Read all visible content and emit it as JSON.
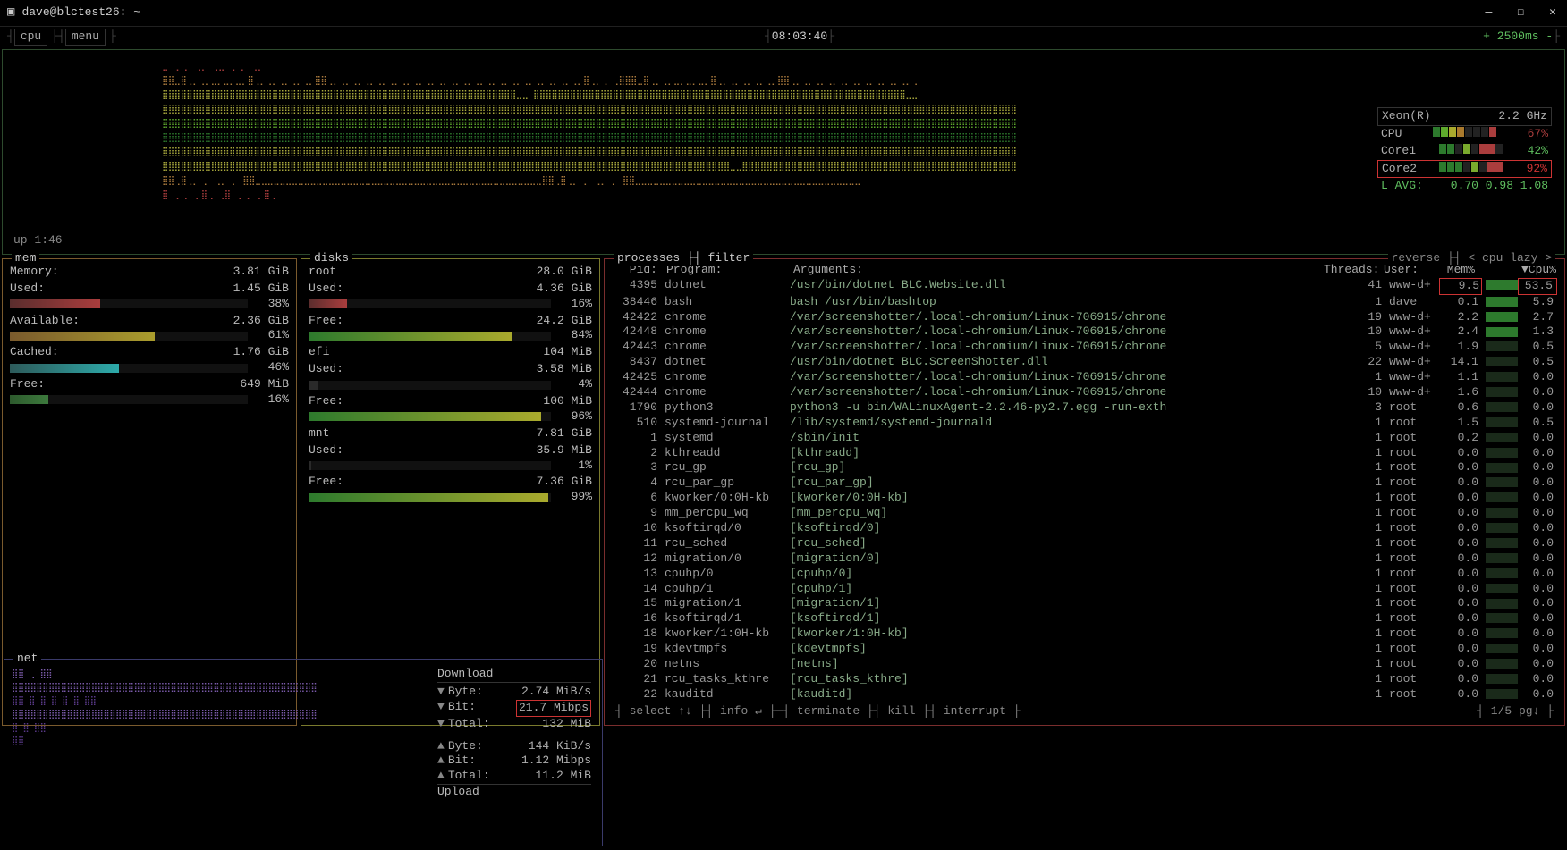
{
  "window": {
    "title": "dave@blctest26: ~"
  },
  "topbar": {
    "cpu_label": "cpu",
    "menu_label": "menu",
    "clock": "08:03:40",
    "interval": "+ 2500ms -"
  },
  "uptime": "up  1:46",
  "cpu_info": {
    "model": "Xeon(R)",
    "freq": "2.2 GHz",
    "cpu_label": "CPU",
    "cpu_pct": "67%",
    "cpu_pct_color": "#aa3d3d",
    "core1_label": "Core1",
    "core1_pct": "42%",
    "core1_pct_color": "#5fbf5f",
    "core2_label": "Core2",
    "core2_pct": "92%",
    "core2_pct_color": "#cc3333",
    "lavg_label": "L AVG:",
    "lavg": "0.70 0.98 1.08",
    "bar_segments": {
      "cpu": [
        "#2d7a2d",
        "#5faa2d",
        "#aaaa2d",
        "#aa7a2d",
        "#222",
        "#222",
        "#222",
        "#aa3d3d"
      ],
      "core1": [
        "#2d7a2d",
        "#2d7a2d",
        "#222",
        "#7aaa2d",
        "#222",
        "#aa3d3d",
        "#aa3d3d",
        "#222"
      ],
      "core2": [
        "#2d7a2d",
        "#2d7a2d",
        "#2d7a2d",
        "#222",
        "#7aaa2d",
        "#222",
        "#aa3d3d",
        "#aa3d3d"
      ]
    }
  },
  "cpu_graph": {
    "rows": [
      {
        "color": "#aa3d3d",
        "chars": "⣀  ⢀          ⡀         ⢀⡀                                              ⢀"
      },
      {
        "color": "#aa7a3d",
        "chars": "⣿⣿⣀⣿⢀⡀⢀⡀⣀⡀⣀⡀⣀⡀⣿⢀⡀⢀⡀⢀⡀⢀⡀⢀⡀⣿⣿⢀⡀⢀⡀⢀⡀⢀⡀⢀⡀⢀⡀⢀⡀⢀⡀⢀⡀⢀⡀⢀⡀⢀⡀⢀⡀⢀⡀⢀⡀⢀⡀⢀⡀⢀⡀⢀⡀⢀⡀⢀⡀⣿⢀⡀⢀                 ⢀⣿"
      },
      {
        "color": "#aaaa3d",
        "chars": "⣿⣿⣿⣿⣿⣿⣿⣿⣿⣿⣿⣿⣿⣿⣿⣿⣿⣿⣿⣿⣿⣿⣿⣿⣿⣿⣿⣿⣿⣿⣿⣿⣿⣿⣿⣿⣿⣿⣿⣿⣿⣿⣿⣿⣿⣿⣿⣿⣿⣿⣿⣿⣿⣿⣿⣿⣿⣿⣀⣀                ⣿⣿⣿"
      },
      {
        "color": "#aaaa3d",
        "chars": "⣿⣿⣿⣿⣿⣿⣿⣿⣿⣿⣿⣿⣿⣿⣿⣿⣿⣿⣿⣿⣿⣿⣿⣿⣿⣿⣿⣿⣿⣿⣿⣿⣿⣿⣿⣿⣿⣿⣿⣿⣿⣿⣿⣿⣿⣿⣿⣿⣿⣿⣿⣿⣿⣿⣿⣿⣿⣿⣿⣿⣿⣿⣿⣿⣿⣿⣿⣿⣿⣿⣿⣿⣿⣿⣿⣿⣿⣿⣿⣿⣿⣿⣿⣿⣿⣿⣿⣿⣿⣿⣿⣿⣿⣿⣿"
      },
      {
        "color": "#5faa2d",
        "chars": "⣿⣿⣿⣿⣿⣿⣿⣿⣿⣿⣿⣿⣿⣿⣿⣿⣿⣿⣿⣿⣿⣿⣿⣿⣿⣿⣿⣿⣿⣿⣿⣿⣿⣿⣿⣿⣿⣿⣿⣿⣿⣿⣿⣿⣿⣿⣿⣿⣿⣿⣿⣿⣿⣿⣿⣿⣿⣿⣿⣿⣿⣿⣿⣿⣿⣿⣿⣿⣿⣿⣿⣿⣿⣿⣿⣿⣿⣿⣿⣿⣿⣿⣿⣿⣿⣿⣿⣿⣿⣿⣿⣿⣿⣿⣿"
      },
      {
        "color": "#2d7a2d",
        "chars": "⣿⣿⣿⣿⣿⣿⣿⣿⣿⣿⣿⣿⣿⣿⣿⣿⣿⣿⣿⣿⣿⣿⣿⣿⣿⣿⣿⣿⣿⣿⣿⣿⣿⣿⣿⣿⣿⣿⣿⣿⣿⣿⣿⣿⣿⣿⣿⣿⣿⣿⣿⣿⣿⣿⣿⣿⣿⣿⣿⣿⣿⣿⣿⣿⣿⣿⣿⣿⣿⣿⣿⣿⣿⣿⣿⣿⣿⣿⣿⣿⣿⣿⣿⣿⣿⣿⣿⣿⣿⣿⣿⣿⣿⣿⣿"
      },
      {
        "color": "#aaaa3d",
        "chars": "⣿⣿⣿⣿⣿⣿⣿⣿⣿⣿⣿⣿⣿⣿⣿⣿⣿⣿⣿⣿⣿⣿⣿⣿⣿⣿⣿⣿⣿⣿⣿⣿⣿⣿⣿⣿⣿⣿⣿⣿⣿⣿⣿⣿⣿⣿⣿⣿⣿⣿⣿⣿⣿⣿⣿⣿⣿⣿⣿⣿⣿⣿⣿⣿⣿⣿⣿⣿⣿⣿⣿⣿⣿⣿⣿⣿⣿⣿⣿⣿⣿⣿⣿⣿⣿⣿⣿⣿⣿⣿⣿⣿⣿⣿⣿"
      },
      {
        "color": "#aaaa3d",
        "chars": "⣿⣿⣿⣿⣿⣿⣿⣿⣿⣿⣿⣿⣿⣿⣿⣿⣿⣿⣿⣿⣿⣿⣿⣿⣿⣿⣿⣿⣿⣿⣿⣿⣿⣿⣿⣿⣿⣿⣿⣿⣿⣿⣿⣿⣿⣿⣿⣿⣿⣿⣿⣿⣿⣿⣿⣿⣿⣿⣿⣿⣿⣿⣿⣿⣿⣿⣿⣿⣿⣿⣿⣿⣿⣿⣿⣿⣿⣿⣿⣿⣿⣿⣿⣿⣿⣿⣿⣿⣿⣿⣿⣿⣿⣀⣀"
      },
      {
        "color": "#aa7a3d",
        "chars": "⣿⣿⢀⣿⢀⡀     ⡀     ⢀⡀     ⡀ ⣿⣿⣀⣀⣀⣀⣀⣀⣀⣀⣀⣀⣀⣀⣀⣀⣀⣀⣀⣀⣀⣀⣀⣀⣀⣀⣀⣀⣀⣀⣀⣀⣀⣀⣀⣀⣀⣀⣀⣀⣀⣀⣀⣀⣀⣀⣀⣀⣀"
      },
      {
        "color": "#aa3d3d",
        "chars": "⣿  ⢀          ⡀         ⡀⣿⢀                                             ⢀"
      }
    ]
  },
  "mem": {
    "title": "mem",
    "items": [
      {
        "label": "Memory:",
        "value": "3.81 GiB",
        "bar_color": "#aa3d3d",
        "pct": "",
        "fill": 0
      },
      {
        "label": "Used:",
        "value": "1.45 GiB",
        "bar_color": "linear-gradient(90deg,#5a2d2d,#aa3d3d)",
        "pct": "38%",
        "fill": 38
      },
      {
        "label": "Available:",
        "value": "2.36 GiB",
        "bar_color": "linear-gradient(90deg,#7a5a2d,#aa9d2d)",
        "pct": "61%",
        "fill": 61
      },
      {
        "label": "Cached:",
        "value": "1.76 GiB",
        "bar_color": "linear-gradient(90deg,#2d5a5a,#2daaaa)",
        "pct": "46%",
        "fill": 46
      },
      {
        "label": "Free:",
        "value": "649 MiB",
        "bar_color": "linear-gradient(90deg,#2d5a2d,#3d7a3d)",
        "pct": "16%",
        "fill": 16
      }
    ]
  },
  "disks": {
    "title": "disks",
    "items": [
      {
        "label": "root",
        "value": "28.0 GiB",
        "is_header": true
      },
      {
        "label": "Used:",
        "value": "4.36 GiB",
        "bar": "gradient-red",
        "pct": "16%",
        "fill": 16
      },
      {
        "label": "Free:",
        "value": "24.2 GiB",
        "bar": "gradient-green-yellow",
        "pct": "84%",
        "fill": 84
      },
      {
        "label": "efi",
        "value": "104 MiB",
        "is_header": true
      },
      {
        "label": "Used:",
        "value": "3.58 MiB",
        "bar": "gradient-dark",
        "pct": "4%",
        "fill": 4
      },
      {
        "label": "Free:",
        "value": "100 MiB",
        "bar": "gradient-green-yellow",
        "pct": "96%",
        "fill": 96
      },
      {
        "label": "mnt",
        "value": "7.81 GiB",
        "is_header": true
      },
      {
        "label": "Used:",
        "value": "35.9 MiB",
        "bar": "gradient-dark",
        "pct": "1%",
        "fill": 1
      },
      {
        "label": "Free:",
        "value": "7.36 GiB",
        "bar": "gradient-green-yellow",
        "pct": "99%",
        "fill": 99
      }
    ]
  },
  "processes": {
    "title": "processes",
    "filter_label": "filter",
    "reverse_label": "reverse",
    "sort_label": "< cpu lazy >",
    "headers": {
      "pid": "Pid:",
      "program": "Program:",
      "args": "Arguments:",
      "threads": "Threads:",
      "user": "User:",
      "mem": "Mem%",
      "cpu": "▼Cpu%"
    },
    "rows": [
      {
        "pid": "4395",
        "prog": "dotnet",
        "args": "/usr/bin/dotnet BLC.Website.dll",
        "thr": "41",
        "user": "www-d+",
        "mem": "9.5",
        "cpu": "53.5",
        "hl": true
      },
      {
        "pid": "38446",
        "prog": "bash",
        "args": "bash /usr/bin/bashtop",
        "thr": "1",
        "user": "dave",
        "mem": "0.1",
        "cpu": "5.9"
      },
      {
        "pid": "42422",
        "prog": "chrome",
        "args": "/var/screenshotter/.local-chromium/Linux-706915/chrome",
        "thr": "19",
        "user": "www-d+",
        "mem": "2.2",
        "cpu": "2.7"
      },
      {
        "pid": "42448",
        "prog": "chrome",
        "args": "/var/screenshotter/.local-chromium/Linux-706915/chrome",
        "thr": "10",
        "user": "www-d+",
        "mem": "2.4",
        "cpu": "1.3"
      },
      {
        "pid": "42443",
        "prog": "chrome",
        "args": "/var/screenshotter/.local-chromium/Linux-706915/chrome",
        "thr": "5",
        "user": "www-d+",
        "mem": "1.9",
        "cpu": "0.5"
      },
      {
        "pid": "8437",
        "prog": "dotnet",
        "args": "/usr/bin/dotnet BLC.ScreenShotter.dll",
        "thr": "22",
        "user": "www-d+",
        "mem": "14.1",
        "cpu": "0.5"
      },
      {
        "pid": "42425",
        "prog": "chrome",
        "args": "/var/screenshotter/.local-chromium/Linux-706915/chrome",
        "thr": "1",
        "user": "www-d+",
        "mem": "1.1",
        "cpu": "0.0"
      },
      {
        "pid": "42444",
        "prog": "chrome",
        "args": "/var/screenshotter/.local-chromium/Linux-706915/chrome",
        "thr": "10",
        "user": "www-d+",
        "mem": "1.6",
        "cpu": "0.0"
      },
      {
        "pid": "1790",
        "prog": "python3",
        "args": "python3 -u bin/WALinuxAgent-2.2.46-py2.7.egg -run-exth",
        "thr": "3",
        "user": "root",
        "mem": "0.6",
        "cpu": "0.0"
      },
      {
        "pid": "510",
        "prog": "systemd-journal",
        "args": "/lib/systemd/systemd-journald",
        "thr": "1",
        "user": "root",
        "mem": "1.5",
        "cpu": "0.5"
      },
      {
        "pid": "1",
        "prog": "systemd",
        "args": "/sbin/init",
        "thr": "1",
        "user": "root",
        "mem": "0.2",
        "cpu": "0.0"
      },
      {
        "pid": "2",
        "prog": "kthreadd",
        "args": "[kthreadd]",
        "thr": "1",
        "user": "root",
        "mem": "0.0",
        "cpu": "0.0"
      },
      {
        "pid": "3",
        "prog": "rcu_gp",
        "args": "[rcu_gp]",
        "thr": "1",
        "user": "root",
        "mem": "0.0",
        "cpu": "0.0"
      },
      {
        "pid": "4",
        "prog": "rcu_par_gp",
        "args": "[rcu_par_gp]",
        "thr": "1",
        "user": "root",
        "mem": "0.0",
        "cpu": "0.0"
      },
      {
        "pid": "6",
        "prog": "kworker/0:0H-kb",
        "args": "[kworker/0:0H-kb]",
        "thr": "1",
        "user": "root",
        "mem": "0.0",
        "cpu": "0.0"
      },
      {
        "pid": "9",
        "prog": "mm_percpu_wq",
        "args": "[mm_percpu_wq]",
        "thr": "1",
        "user": "root",
        "mem": "0.0",
        "cpu": "0.0"
      },
      {
        "pid": "10",
        "prog": "ksoftirqd/0",
        "args": "[ksoftirqd/0]",
        "thr": "1",
        "user": "root",
        "mem": "0.0",
        "cpu": "0.0"
      },
      {
        "pid": "11",
        "prog": "rcu_sched",
        "args": "[rcu_sched]",
        "thr": "1",
        "user": "root",
        "mem": "0.0",
        "cpu": "0.0"
      },
      {
        "pid": "12",
        "prog": "migration/0",
        "args": "[migration/0]",
        "thr": "1",
        "user": "root",
        "mem": "0.0",
        "cpu": "0.0"
      },
      {
        "pid": "13",
        "prog": "cpuhp/0",
        "args": "[cpuhp/0]",
        "thr": "1",
        "user": "root",
        "mem": "0.0",
        "cpu": "0.0"
      },
      {
        "pid": "14",
        "prog": "cpuhp/1",
        "args": "[cpuhp/1]",
        "thr": "1",
        "user": "root",
        "mem": "0.0",
        "cpu": "0.0"
      },
      {
        "pid": "15",
        "prog": "migration/1",
        "args": "[migration/1]",
        "thr": "1",
        "user": "root",
        "mem": "0.0",
        "cpu": "0.0"
      },
      {
        "pid": "16",
        "prog": "ksoftirqd/1",
        "args": "[ksoftirqd/1]",
        "thr": "1",
        "user": "root",
        "mem": "0.0",
        "cpu": "0.0"
      },
      {
        "pid": "18",
        "prog": "kworker/1:0H-kb",
        "args": "[kworker/1:0H-kb]",
        "thr": "1",
        "user": "root",
        "mem": "0.0",
        "cpu": "0.0"
      },
      {
        "pid": "19",
        "prog": "kdevtmpfs",
        "args": "[kdevtmpfs]",
        "thr": "1",
        "user": "root",
        "mem": "0.0",
        "cpu": "0.0"
      },
      {
        "pid": "20",
        "prog": "netns",
        "args": "[netns]",
        "thr": "1",
        "user": "root",
        "mem": "0.0",
        "cpu": "0.0"
      },
      {
        "pid": "21",
        "prog": "rcu_tasks_kthre",
        "args": "[rcu_tasks_kthre]",
        "thr": "1",
        "user": "root",
        "mem": "0.0",
        "cpu": "0.0"
      },
      {
        "pid": "22",
        "prog": "kauditd",
        "args": "[kauditd]",
        "thr": "1",
        "user": "root",
        "mem": "0.0",
        "cpu": "0.0"
      }
    ],
    "footer": {
      "select": "select ↑↓",
      "info": "info ↵",
      "terminate": "terminate",
      "kill": "kill",
      "interrupt": "interrupt",
      "page": "1/5 pg↓"
    }
  },
  "net": {
    "title": "net",
    "download_label": "Download",
    "upload_label": "Upload",
    "down": [
      {
        "arrow": "▼",
        "label": "Byte:",
        "value": "2.74 MiB/s"
      },
      {
        "arrow": "▼",
        "label": "Bit:",
        "value": "21.7 Mibps",
        "hl": true
      },
      {
        "arrow": "▼",
        "label": "Total:",
        "value": "132 MiB"
      }
    ],
    "up": [
      {
        "arrow": "▲",
        "label": "Byte:",
        "value": "144 KiB/s"
      },
      {
        "arrow": "▲",
        "label": "Bit:",
        "value": "1.12 Mibps"
      },
      {
        "arrow": "▲",
        "label": "Total:",
        "value": "11.2 MiB"
      }
    ],
    "graph_rows": [
      {
        "color": "#7a5aaa",
        "chars": "⣿⣿   ⢀                                         ⣿⣿"
      },
      {
        "color": "#7a5aaa",
        "chars": "⣿⣿⣿⣿⣿⣿⣿⣿⣿⣿⣿⣿⣿⣿⣿⣿⣿⣿⣿⣿⣿⣿⣿⣿⣿⣿⣿⣿⣿⣿⣿⣿⣿⣿⣿⣿⣿⣿⣿⣿⣿⣿⣿⣿⣿⣿⣿⣿⣿⣿"
      },
      {
        "color": "#5a3a8a",
        "chars": "⣿⣿   ⣿       ⣿   ⣿       ⣿           ⣿         ⣿⣿"
      },
      {
        "color": "#7a5aaa",
        "chars": "⣿⣿⣿⣿⣿⣿⣿⣿⣿⣿⣿⣿⣿⣿⣿⣿⣿⣿⣿⣿⣿⣿⣿⣿⣿⣿⣿⣿⣿⣿⣿⣿⣿⣿⣿⣿⣿⣿⣿⣿⣿⣿⣿⣿⣿⣿⣿⣿⣿⣿"
      },
      {
        "color": "#5a3a8a",
        "chars": ""
      },
      {
        "color": "#5a3a8a",
        "chars": "    ⣿                   ⣿                  ⣿⣿"
      },
      {
        "color": "#5a3a8a",
        "chars": "                                              ⣿⣿"
      }
    ]
  }
}
